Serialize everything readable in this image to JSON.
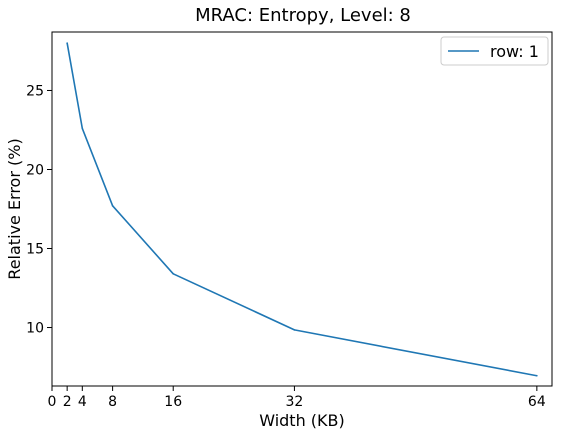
{
  "chart_data": {
    "type": "line",
    "title": "MRAC: Entropy, Level: 8",
    "xlabel": "Width (KB)",
    "ylabel": "Relative Error (%)",
    "xlim": [
      0,
      66
    ],
    "ylim": [
      6.3,
      28.7
    ],
    "xticks": [
      0,
      2,
      4,
      8,
      16,
      32,
      64
    ],
    "yticks": [
      10,
      15,
      20,
      25
    ],
    "grid": false,
    "legend_position": "top-right",
    "series": [
      {
        "name": "row: 1",
        "color": "#1f77b4",
        "x": [
          2,
          4,
          8,
          16,
          32,
          64
        ],
        "y": [
          28.0,
          22.6,
          17.7,
          13.4,
          9.85,
          6.95
        ]
      }
    ]
  }
}
